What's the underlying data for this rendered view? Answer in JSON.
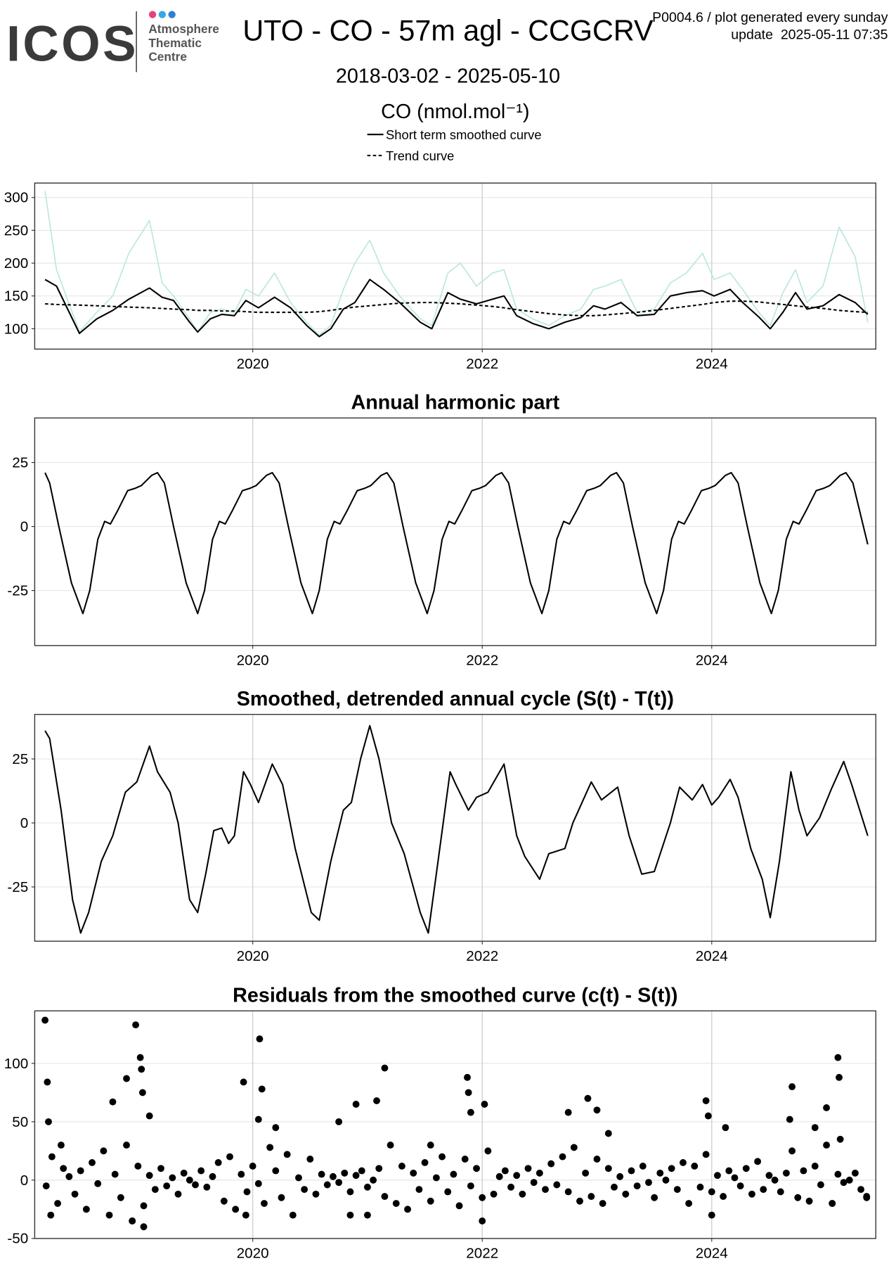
{
  "header": {
    "logo": "ICOS",
    "org": [
      "Atmosphere",
      "Thematic",
      "Centre"
    ],
    "title": "UTO - CO - 57m agl - CCGCRV",
    "note": "P0004.6 / plot generated every sunday",
    "update": "update  2025-05-11 07:35",
    "period": "2018-03-02 - 2025-05-10"
  },
  "chart_data": [
    {
      "type": "line",
      "title": "CO (nmol.mol⁻¹)",
      "grid": true,
      "xlim": [
        2018.1,
        2025.43
      ],
      "xticks": [
        2020,
        2022,
        2024
      ],
      "ylim": [
        69,
        322
      ],
      "yticks": [
        100,
        150,
        200,
        250,
        300
      ],
      "x": [
        2018.19,
        2018.29,
        2018.49,
        2018.64,
        2018.78,
        2018.92,
        2019.1,
        2019.21,
        2019.31,
        2019.45,
        2019.52,
        2019.63,
        2019.73,
        2019.84,
        2019.94,
        2020.05,
        2020.19,
        2020.33,
        2020.47,
        2020.58,
        2020.68,
        2020.79,
        2020.89,
        2021.02,
        2021.14,
        2021.28,
        2021.46,
        2021.56,
        2021.7,
        2021.81,
        2021.95,
        2022.09,
        2022.19,
        2022.3,
        2022.44,
        2022.58,
        2022.72,
        2022.86,
        2022.97,
        2023.07,
        2023.21,
        2023.35,
        2023.5,
        2023.64,
        2023.78,
        2023.92,
        2024.02,
        2024.16,
        2024.27,
        2024.41,
        2024.51,
        2024.62,
        2024.73,
        2024.83,
        2024.97,
        2025.11,
        2025.25,
        2025.36
      ],
      "series": [
        {
          "color": "#b9e6df",
          "linestyle": "solid",
          "values": [
            310,
            190,
            95,
            125,
            150,
            215,
            265,
            170,
            150,
            115,
            95,
            125,
            130,
            125,
            160,
            150,
            185,
            140,
            110,
            90,
            105,
            160,
            200,
            235,
            185,
            150,
            115,
            105,
            185,
            200,
            165,
            185,
            190,
            130,
            115,
            105,
            120,
            130,
            160,
            165,
            175,
            125,
            130,
            170,
            185,
            215,
            175,
            185,
            160,
            125,
            105,
            155,
            190,
            140,
            165,
            255,
            210,
            110
          ]
        },
        {
          "name": "Short term smoothed curve",
          "color": "#000000",
          "linestyle": "solid",
          "values": [
            175,
            165,
            93,
            115,
            128,
            145,
            162,
            148,
            143,
            110,
            95,
            115,
            122,
            120,
            143,
            132,
            148,
            132,
            105,
            88,
            100,
            130,
            140,
            175,
            160,
            140,
            110,
            100,
            155,
            145,
            138,
            145,
            150,
            120,
            108,
            100,
            110,
            117,
            135,
            130,
            140,
            120,
            122,
            150,
            155,
            158,
            150,
            160,
            140,
            118,
            100,
            125,
            155,
            130,
            135,
            152,
            140,
            122
          ]
        },
        {
          "name": "Trend curve",
          "color": "#000000",
          "linestyle": "dashed",
          "values": [
            138,
            137,
            136,
            135,
            134,
            133,
            132,
            131,
            130,
            129,
            128,
            128,
            127,
            127,
            126,
            125,
            125,
            125,
            125,
            126,
            128,
            131,
            133,
            135,
            137,
            139,
            140,
            140,
            139,
            138,
            136,
            134,
            132,
            129,
            126,
            123,
            121,
            120,
            120,
            121,
            123,
            125,
            128,
            131,
            134,
            137,
            140,
            142,
            142,
            141,
            139,
            137,
            135,
            133,
            131,
            128,
            126,
            125
          ]
        }
      ]
    },
    {
      "type": "line",
      "title": "Annual harmonic part",
      "grid": true,
      "color": "#000000",
      "xlim": [
        2018.1,
        2025.43
      ],
      "xticks": [
        2020,
        2022,
        2024
      ],
      "ylim": [
        -46.5,
        42.4
      ],
      "yticks": [
        -25,
        0,
        25
      ],
      "x": [
        2018.19,
        2018.23,
        2018.31,
        2018.42,
        2018.52,
        2018.58,
        2018.65,
        2018.71,
        2018.76,
        2018.82,
        2018.91,
        2018.98,
        2019.03,
        2019.12,
        2019.17,
        2019.23,
        2019.31,
        2019.42,
        2019.52,
        2019.58,
        2019.65,
        2019.71,
        2019.76,
        2019.82,
        2019.91,
        2019.98,
        2020.03,
        2020.12,
        2020.17,
        2020.23,
        2020.31,
        2020.42,
        2020.52,
        2020.58,
        2020.65,
        2020.71,
        2020.76,
        2020.82,
        2020.91,
        2020.98,
        2021.03,
        2021.12,
        2021.17,
        2021.23,
        2021.31,
        2021.42,
        2021.52,
        2021.58,
        2021.65,
        2021.71,
        2021.76,
        2021.82,
        2021.91,
        2021.98,
        2022.03,
        2022.12,
        2022.17,
        2022.23,
        2022.31,
        2022.42,
        2022.52,
        2022.58,
        2022.65,
        2022.71,
        2022.76,
        2022.82,
        2022.91,
        2022.98,
        2023.03,
        2023.12,
        2023.17,
        2023.23,
        2023.31,
        2023.42,
        2023.52,
        2023.58,
        2023.65,
        2023.71,
        2023.76,
        2023.82,
        2023.91,
        2023.98,
        2024.03,
        2024.12,
        2024.17,
        2024.23,
        2024.31,
        2024.42,
        2024.52,
        2024.58,
        2024.65,
        2024.71,
        2024.76,
        2024.82,
        2024.91,
        2024.98,
        2025.03,
        2025.12,
        2025.17,
        2025.23,
        2025.36
      ],
      "values": [
        21,
        17,
        0,
        -22,
        -34,
        -25,
        -5,
        2,
        1,
        6,
        14,
        15,
        16,
        20,
        21,
        17,
        0,
        -22,
        -34,
        -25,
        -5,
        2,
        1,
        6,
        14,
        15,
        16,
        20,
        21,
        17,
        0,
        -22,
        -34,
        -25,
        -5,
        2,
        1,
        6,
        14,
        15,
        16,
        20,
        21,
        17,
        0,
        -22,
        -34,
        -25,
        -5,
        2,
        1,
        6,
        14,
        15,
        16,
        20,
        21,
        17,
        0,
        -22,
        -34,
        -25,
        -5,
        2,
        1,
        6,
        14,
        15,
        16,
        20,
        21,
        17,
        0,
        -22,
        -34,
        -25,
        -5,
        2,
        1,
        6,
        14,
        15,
        16,
        20,
        21,
        17,
        0,
        -22,
        -34,
        -25,
        -5,
        2,
        1,
        6,
        14,
        15,
        16,
        20,
        21,
        17,
        -7
      ]
    },
    {
      "type": "line",
      "title": "Smoothed, detrended annual cycle (S(t) - T(t))",
      "grid": true,
      "color": "#000000",
      "xlim": [
        2018.1,
        2025.43
      ],
      "xticks": [
        2020,
        2022,
        2024
      ],
      "ylim": [
        -46.2,
        42.4
      ],
      "yticks": [
        -25,
        0,
        25
      ],
      "x": [
        2018.19,
        2018.23,
        2018.33,
        2018.43,
        2018.5,
        2018.57,
        2018.68,
        2018.78,
        2018.89,
        2018.99,
        2019.1,
        2019.17,
        2019.28,
        2019.35,
        2019.45,
        2019.52,
        2019.59,
        2019.66,
        2019.73,
        2019.79,
        2019.84,
        2019.92,
        2019.98,
        2020.05,
        2020.17,
        2020.26,
        2020.37,
        2020.51,
        2020.58,
        2020.68,
        2020.79,
        2020.86,
        2020.94,
        2021.02,
        2021.1,
        2021.21,
        2021.32,
        2021.46,
        2021.53,
        2021.6,
        2021.72,
        2021.77,
        2021.88,
        2021.95,
        2022.05,
        2022.19,
        2022.3,
        2022.37,
        2022.5,
        2022.58,
        2022.72,
        2022.79,
        2022.95,
        2023.04,
        2023.18,
        2023.28,
        2023.39,
        2023.5,
        2023.64,
        2023.72,
        2023.83,
        2023.92,
        2024.0,
        2024.06,
        2024.16,
        2024.23,
        2024.34,
        2024.44,
        2024.51,
        2024.59,
        2024.69,
        2024.76,
        2024.83,
        2024.94,
        2025.04,
        2025.15,
        2025.22,
        2025.36
      ],
      "values": [
        36,
        33,
        5,
        -30,
        -43,
        -35,
        -15,
        -5,
        12,
        16,
        30,
        20,
        12,
        0,
        -30,
        -35,
        -20,
        -3,
        -2,
        -8,
        -5,
        20,
        15,
        8,
        23,
        15,
        -10,
        -35,
        -38,
        -15,
        5,
        8,
        25,
        38,
        25,
        0,
        -12,
        -35,
        -43,
        -20,
        20,
        15,
        5,
        10,
        12,
        23,
        -5,
        -13,
        -22,
        -12,
        -10,
        0,
        16,
        9,
        14,
        -5,
        -20,
        -19,
        0,
        14,
        9,
        15,
        7,
        10,
        17,
        10,
        -10,
        -22,
        -37,
        -15,
        20,
        5,
        -5,
        2,
        13,
        24,
        15,
        -5
      ]
    },
    {
      "type": "scatter",
      "title": "Residuals from the smoothed curve (c(t) - S(t))",
      "grid": true,
      "color": "#000000",
      "xlim": [
        2018.1,
        2025.43
      ],
      "xticks": [
        2020,
        2022,
        2024
      ],
      "ylim": [
        -50,
        145
      ],
      "yticks": [
        -50,
        0,
        50,
        100
      ],
      "x": [
        2018.2,
        2018.25,
        2018.3,
        2018.35,
        2018.4,
        2018.45,
        2018.5,
        2018.55,
        2018.6,
        2018.65,
        2018.7,
        2018.75,
        2018.8,
        2018.85,
        2018.9,
        2018.95,
        2019.0,
        2019.05,
        2019.1,
        2019.15,
        2019.2,
        2019.25,
        2019.3,
        2019.35,
        2019.4,
        2019.45,
        2019.5,
        2019.55,
        2019.6,
        2019.65,
        2019.7,
        2019.75,
        2019.8,
        2019.85,
        2019.9,
        2019.95,
        2020.0,
        2020.05,
        2020.1,
        2020.15,
        2020.2,
        2020.25,
        2020.3,
        2020.35,
        2020.4,
        2020.45,
        2020.5,
        2020.55,
        2020.6,
        2020.65,
        2020.7,
        2020.75,
        2020.8,
        2020.85,
        2020.9,
        2020.95,
        2021.0,
        2021.05,
        2021.1,
        2021.15,
        2021.2,
        2021.25,
        2021.3,
        2021.35,
        2021.4,
        2021.45,
        2021.5,
        2021.55,
        2021.6,
        2021.65,
        2021.7,
        2021.75,
        2021.8,
        2021.85,
        2021.9,
        2021.95,
        2022.0,
        2022.05,
        2022.1,
        2022.15,
        2022.2,
        2022.25,
        2022.3,
        2022.35,
        2022.4,
        2022.45,
        2022.5,
        2022.55,
        2022.6,
        2022.65,
        2022.7,
        2022.75,
        2022.8,
        2022.85,
        2022.9,
        2022.95,
        2023.0,
        2023.05,
        2023.1,
        2023.15,
        2023.2,
        2023.25,
        2023.3,
        2023.35,
        2023.4,
        2023.45,
        2023.5,
        2023.55,
        2023.6,
        2023.65,
        2023.7,
        2023.75,
        2023.8,
        2023.85,
        2023.9,
        2023.95,
        2024.0,
        2024.05,
        2024.1,
        2024.15,
        2024.2,
        2024.25,
        2024.3,
        2024.35,
        2024.4,
        2024.45,
        2024.5,
        2024.55,
        2024.6,
        2024.65,
        2024.7,
        2024.75,
        2024.8,
        2024.85,
        2024.9,
        2024.95,
        2025.0,
        2025.05,
        2025.1,
        2025.15,
        2025.2,
        2025.25,
        2025.3,
        2025.35,
        2018.19,
        2018.21,
        2018.22,
        2018.24,
        2018.33,
        2018.78,
        2018.9,
        2018.98,
        2019.02,
        2019.03,
        2019.04,
        2019.1,
        2019.05,
        2018.95,
        2019.92,
        2019.94,
        2020.05,
        2020.06,
        2020.08,
        2020.2,
        2020.75,
        2020.85,
        2020.9,
        2021.08,
        2021.15,
        2021.0,
        2021.55,
        2021.87,
        2021.88,
        2021.9,
        2022.02,
        2022.0,
        2022.75,
        2022.92,
        2023.0,
        2023.1,
        2023.95,
        2023.97,
        2024.0,
        2024.12,
        2024.7,
        2024.68,
        2024.9,
        2025.0,
        2025.05,
        2025.1,
        2025.11,
        2025.12,
        2025.35
      ],
      "values": [
        -5,
        20,
        -20,
        10,
        3,
        -12,
        8,
        -25,
        15,
        -3,
        25,
        -30,
        5,
        -15,
        30,
        -35,
        12,
        -22,
        4,
        -8,
        10,
        -5,
        2,
        -12,
        6,
        0,
        -4,
        8,
        -6,
        3,
        15,
        -18,
        20,
        -25,
        5,
        -10,
        12,
        -3,
        -20,
        28,
        8,
        -15,
        22,
        -30,
        2,
        -8,
        18,
        -12,
        5,
        -4,
        3,
        -2,
        6,
        -10,
        4,
        8,
        -6,
        0,
        10,
        -14,
        30,
        -20,
        12,
        -25,
        6,
        -8,
        15,
        -18,
        2,
        20,
        -10,
        5,
        -22,
        18,
        -5,
        10,
        -15,
        25,
        -12,
        3,
        8,
        -6,
        4,
        -12,
        10,
        -2,
        6,
        -8,
        14,
        -4,
        20,
        -10,
        28,
        -18,
        6,
        -14,
        18,
        -20,
        10,
        -6,
        3,
        -12,
        8,
        -5,
        12,
        -2,
        -15,
        6,
        0,
        10,
        -8,
        15,
        -20,
        12,
        -6,
        22,
        -10,
        4,
        -14,
        8,
        2,
        -5,
        10,
        -12,
        16,
        -8,
        4,
        0,
        -10,
        6,
        25,
        -15,
        8,
        -18,
        12,
        -4,
        30,
        -20,
        5,
        -2,
        0,
        6,
        -8,
        -14,
        137,
        84,
        50,
        -30,
        30,
        67,
        87,
        133,
        105,
        95,
        75,
        55,
        -40,
        -35,
        84,
        -30,
        52,
        121,
        78,
        45,
        50,
        -30,
        65,
        68,
        96,
        -30,
        30,
        88,
        75,
        58,
        65,
        -35,
        58,
        70,
        60,
        40,
        68,
        55,
        -30,
        45,
        80,
        52,
        45,
        62,
        -20,
        105,
        88,
        35,
        -15
      ]
    }
  ]
}
